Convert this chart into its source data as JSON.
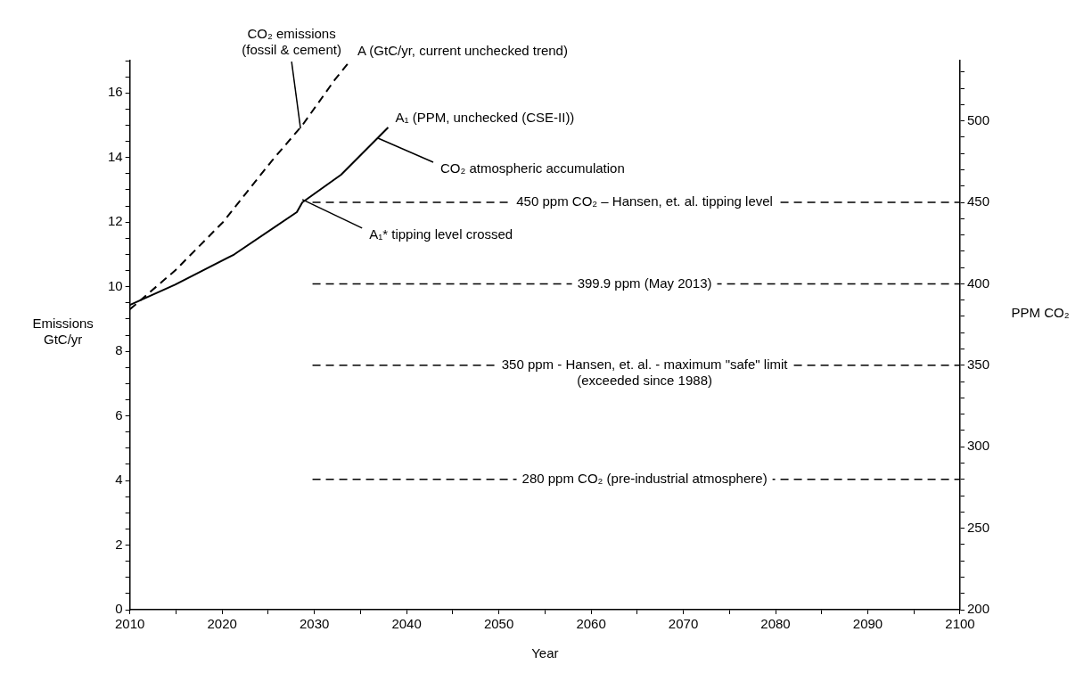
{
  "chart_data": {
    "type": "line",
    "xlabel": "Year",
    "ylabel": "Emissions GtC/yr",
    "y2label": "PPM CO₂",
    "xlim": [
      2010,
      2100
    ],
    "xticks": [
      2010,
      {
        "value": 2015,
        "label": null
      },
      2020,
      {
        "value": 2025,
        "label": null
      },
      2030,
      {
        "value": 2035,
        "label": null
      },
      2040,
      {
        "value": 2045,
        "label": null
      },
      2050,
      {
        "value": 2055,
        "label": null
      },
      2060,
      {
        "value": 2065,
        "label": null
      },
      2070,
      {
        "value": 2075,
        "label": null
      },
      2080,
      {
        "value": 2085,
        "label": null
      },
      2090,
      {
        "value": 2095,
        "label": null
      },
      2100
    ],
    "ylim": [
      0,
      17
    ],
    "yticks": [
      0,
      {
        "value": 0.5,
        "label": null
      },
      {
        "value": 1,
        "label": null
      },
      {
        "value": 1.5,
        "label": null
      },
      2,
      {
        "value": 2.5,
        "label": null
      },
      {
        "value": 3,
        "label": null
      },
      {
        "value": 3.5,
        "label": null
      },
      4,
      {
        "value": 4.5,
        "label": null
      },
      {
        "value": 5,
        "label": null
      },
      {
        "value": 5.5,
        "label": null
      },
      6,
      {
        "value": 6.5,
        "label": null
      },
      {
        "value": 7,
        "label": null
      },
      {
        "value": 7.5,
        "label": null
      },
      8,
      {
        "value": 8.5,
        "label": null
      },
      {
        "value": 9,
        "label": null
      },
      {
        "value": 9.5,
        "label": null
      },
      10,
      {
        "value": 10.5,
        "label": null
      },
      {
        "value": 11,
        "label": null
      },
      {
        "value": 11.5,
        "label": null
      },
      12,
      {
        "value": 12.5,
        "label": null
      },
      {
        "value": 13,
        "label": null
      },
      {
        "value": 13.5,
        "label": null
      },
      14,
      {
        "value": 14.5,
        "label": null
      },
      {
        "value": 15,
        "label": null
      },
      {
        "value": 15.5,
        "label": null
      },
      16,
      {
        "value": 16.5,
        "label": null
      },
      {
        "value": 17,
        "label": null
      }
    ],
    "y2lim": [
      200,
      537
    ],
    "y2ticks": [
      200,
      {
        "value": 210,
        "label": null
      },
      {
        "value": 220,
        "label": null
      },
      {
        "value": 230,
        "label": null
      },
      {
        "value": 240,
        "label": null
      },
      250,
      {
        "value": 260,
        "label": null
      },
      {
        "value": 270,
        "label": null
      },
      {
        "value": 280,
        "label": null
      },
      {
        "value": 290,
        "label": null
      },
      300,
      {
        "value": 310,
        "label": null
      },
      {
        "value": 320,
        "label": null
      },
      {
        "value": 330,
        "label": null
      },
      {
        "value": 340,
        "label": null
      },
      350,
      {
        "value": 360,
        "label": null
      },
      {
        "value": 370,
        "label": null
      },
      {
        "value": 380,
        "label": null
      },
      {
        "value": 390,
        "label": null
      },
      400,
      {
        "value": 410,
        "label": null
      },
      {
        "value": 420,
        "label": null
      },
      {
        "value": 430,
        "label": null
      },
      {
        "value": 440,
        "label": null
      },
      450,
      {
        "value": 460,
        "label": null
      },
      {
        "value": 470,
        "label": null
      },
      {
        "value": 480,
        "label": null
      },
      {
        "value": 490,
        "label": null
      },
      500,
      {
        "value": 510,
        "label": null
      },
      {
        "value": 520,
        "label": null
      },
      {
        "value": 530,
        "label": null
      }
    ],
    "grid": false,
    "marker": "none",
    "series": [
      {
        "name": "A (GtC/yr, current unchecked trend)",
        "color": "#000000",
        "line_style": "dashed",
        "x": [
          2010,
          2014.9,
          2020.1,
          2025.4,
          2028.7,
          2032.2,
          2033.9
        ],
        "values": [
          9.3,
          10.5,
          12.0,
          13.9,
          15.0,
          16.4,
          17.0
        ]
      },
      {
        "name": "A₁ (PPM, unchecked (CSE-II))",
        "color": "#000000",
        "line_style": "solid",
        "axis": "y2",
        "x": [
          2010,
          2014.9,
          2021.3,
          2028.1,
          2028.7,
          2032.9,
          2038
        ],
        "values": [
          387,
          399.5,
          418,
          444,
          450,
          467,
          496
        ]
      }
    ],
    "ref_lines": [
      {
        "axis": "y2",
        "value": 450,
        "label": "450 ppm CO₂ – Hansen, et. al. tipping level",
        "color": "#000000",
        "line_style": "dashed"
      },
      {
        "axis": "y2",
        "value": 399.9,
        "label": "399.9 ppm (May 2013)",
        "color": "#000000",
        "line_style": "dashed"
      },
      {
        "axis": "y2",
        "value": 350,
        "label": "350 ppm - Hansen, et. al. - maximum \"safe\" limit (exceeded since 1988)",
        "color": "#000000",
        "line_style": "dashed"
      },
      {
        "axis": "y2",
        "value": 280,
        "label": "280 ppm CO₂ (pre-industrial atmosphere)",
        "color": "#000000",
        "line_style": "dashed"
      }
    ],
    "annotations": [
      {
        "text": "CO₂ emissions (fossil & cement)",
        "x": 2028.5,
        "y": 14.9
      },
      {
        "text": "CO₂ atmospheric accumulation",
        "x": 2036.9,
        "y": 14.6
      },
      {
        "text": "A₁* tipping level crossed",
        "x": 2028.7,
        "y": 12.7
      }
    ]
  }
}
